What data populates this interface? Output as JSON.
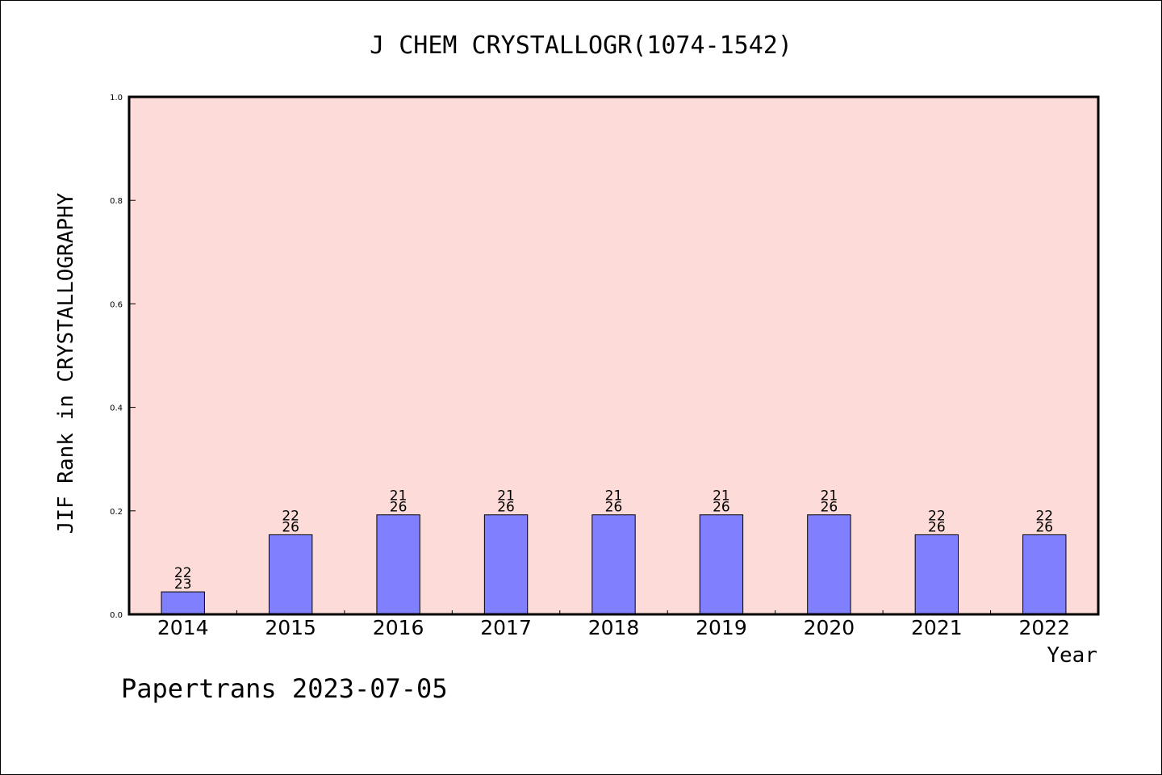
{
  "chart_data": {
    "type": "bar",
    "title": "J CHEM CRYSTALLOGR(1074-1542)",
    "xlabel": "Year",
    "ylabel": "JIF Rank in CRYSTALLOGRAPHY",
    "categories": [
      "2014",
      "2015",
      "2016",
      "2017",
      "2018",
      "2019",
      "2020",
      "2021",
      "2022"
    ],
    "values": [
      0.0435,
      0.1538,
      0.1923,
      0.1923,
      0.1923,
      0.1923,
      0.1923,
      0.1538,
      0.1538
    ],
    "rank_labels": [
      {
        "rank": "22",
        "total": "23"
      },
      {
        "rank": "22",
        "total": "26"
      },
      {
        "rank": "21",
        "total": "26"
      },
      {
        "rank": "21",
        "total": "26"
      },
      {
        "rank": "21",
        "total": "26"
      },
      {
        "rank": "21",
        "total": "26"
      },
      {
        "rank": "21",
        "total": "26"
      },
      {
        "rank": "22",
        "total": "26"
      },
      {
        "rank": "22",
        "total": "26"
      }
    ],
    "ylim": [
      0,
      1.0
    ],
    "yticks": [
      "0.0",
      "0.2",
      "0.4",
      "0.6",
      "0.8",
      "1.0"
    ],
    "grid": false,
    "legend": "none",
    "colors": {
      "plot_background": "#fddbd8",
      "bar_fill": "#8080ff",
      "bar_stroke": "#000000",
      "axis": "#000000"
    }
  },
  "footer": {
    "watermark": "Papertrans 2023-07-05"
  }
}
